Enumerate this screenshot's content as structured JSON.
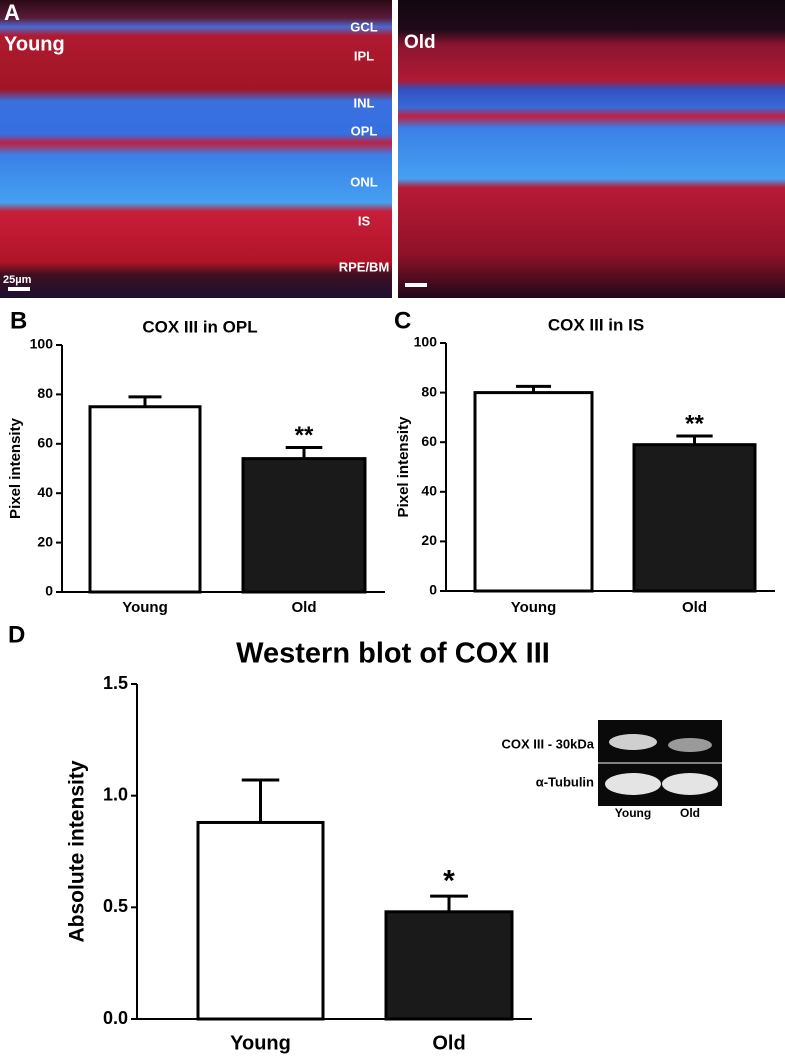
{
  "panels": {
    "a": "A",
    "b": "B",
    "c": "C",
    "d": "D"
  },
  "micrographs": [
    {
      "label": "Young",
      "layers": [
        "GCL",
        "IPL",
        "INL",
        "OPL",
        "ONL",
        "IS",
        "RPE/BM"
      ],
      "scale_bar": "25µm"
    },
    {
      "label": "Old"
    }
  ],
  "chart_data": [
    {
      "type": "bar",
      "title": "COX III in OPL",
      "ylabel": "Pixel intensity",
      "categories": [
        "Young",
        "Old"
      ],
      "values": [
        75,
        54
      ],
      "errors": [
        4,
        4.5
      ],
      "colors": [
        "#ffffff",
        "#1a1a1a"
      ],
      "significance": [
        null,
        "**"
      ],
      "ylim": [
        0,
        100
      ],
      "yticks": [
        0,
        20,
        40,
        60,
        80,
        100
      ]
    },
    {
      "type": "bar",
      "title": "COX III in IS",
      "ylabel": "Pixel intensity",
      "categories": [
        "Young",
        "Old"
      ],
      "values": [
        80,
        59
      ],
      "errors": [
        2.5,
        3.5
      ],
      "colors": [
        "#ffffff",
        "#1a1a1a"
      ],
      "significance": [
        null,
        "**"
      ],
      "ylim": [
        0,
        100
      ],
      "yticks": [
        0,
        20,
        40,
        60,
        80,
        100
      ]
    },
    {
      "type": "bar",
      "title": "Western blot of COX III",
      "ylabel": "Absolute intensity",
      "categories": [
        "Young",
        "Old"
      ],
      "values": [
        0.88,
        0.48
      ],
      "errors": [
        0.19,
        0.07
      ],
      "colors": [
        "#ffffff",
        "#1a1a1a"
      ],
      "significance": [
        null,
        "*"
      ],
      "ylim": [
        0,
        1.5
      ],
      "yticks": [
        {
          "value": 0,
          "label": "0.0"
        },
        {
          "value": 0.5,
          "label": "0.5"
        },
        {
          "value": 1,
          "label": "1.0"
        },
        {
          "value": 1.5,
          "label": "1.5"
        }
      ]
    }
  ],
  "blot": {
    "rows": [
      "COX III - 30kDa",
      "α-Tubulin"
    ],
    "lanes": [
      "Young",
      "Old"
    ]
  }
}
